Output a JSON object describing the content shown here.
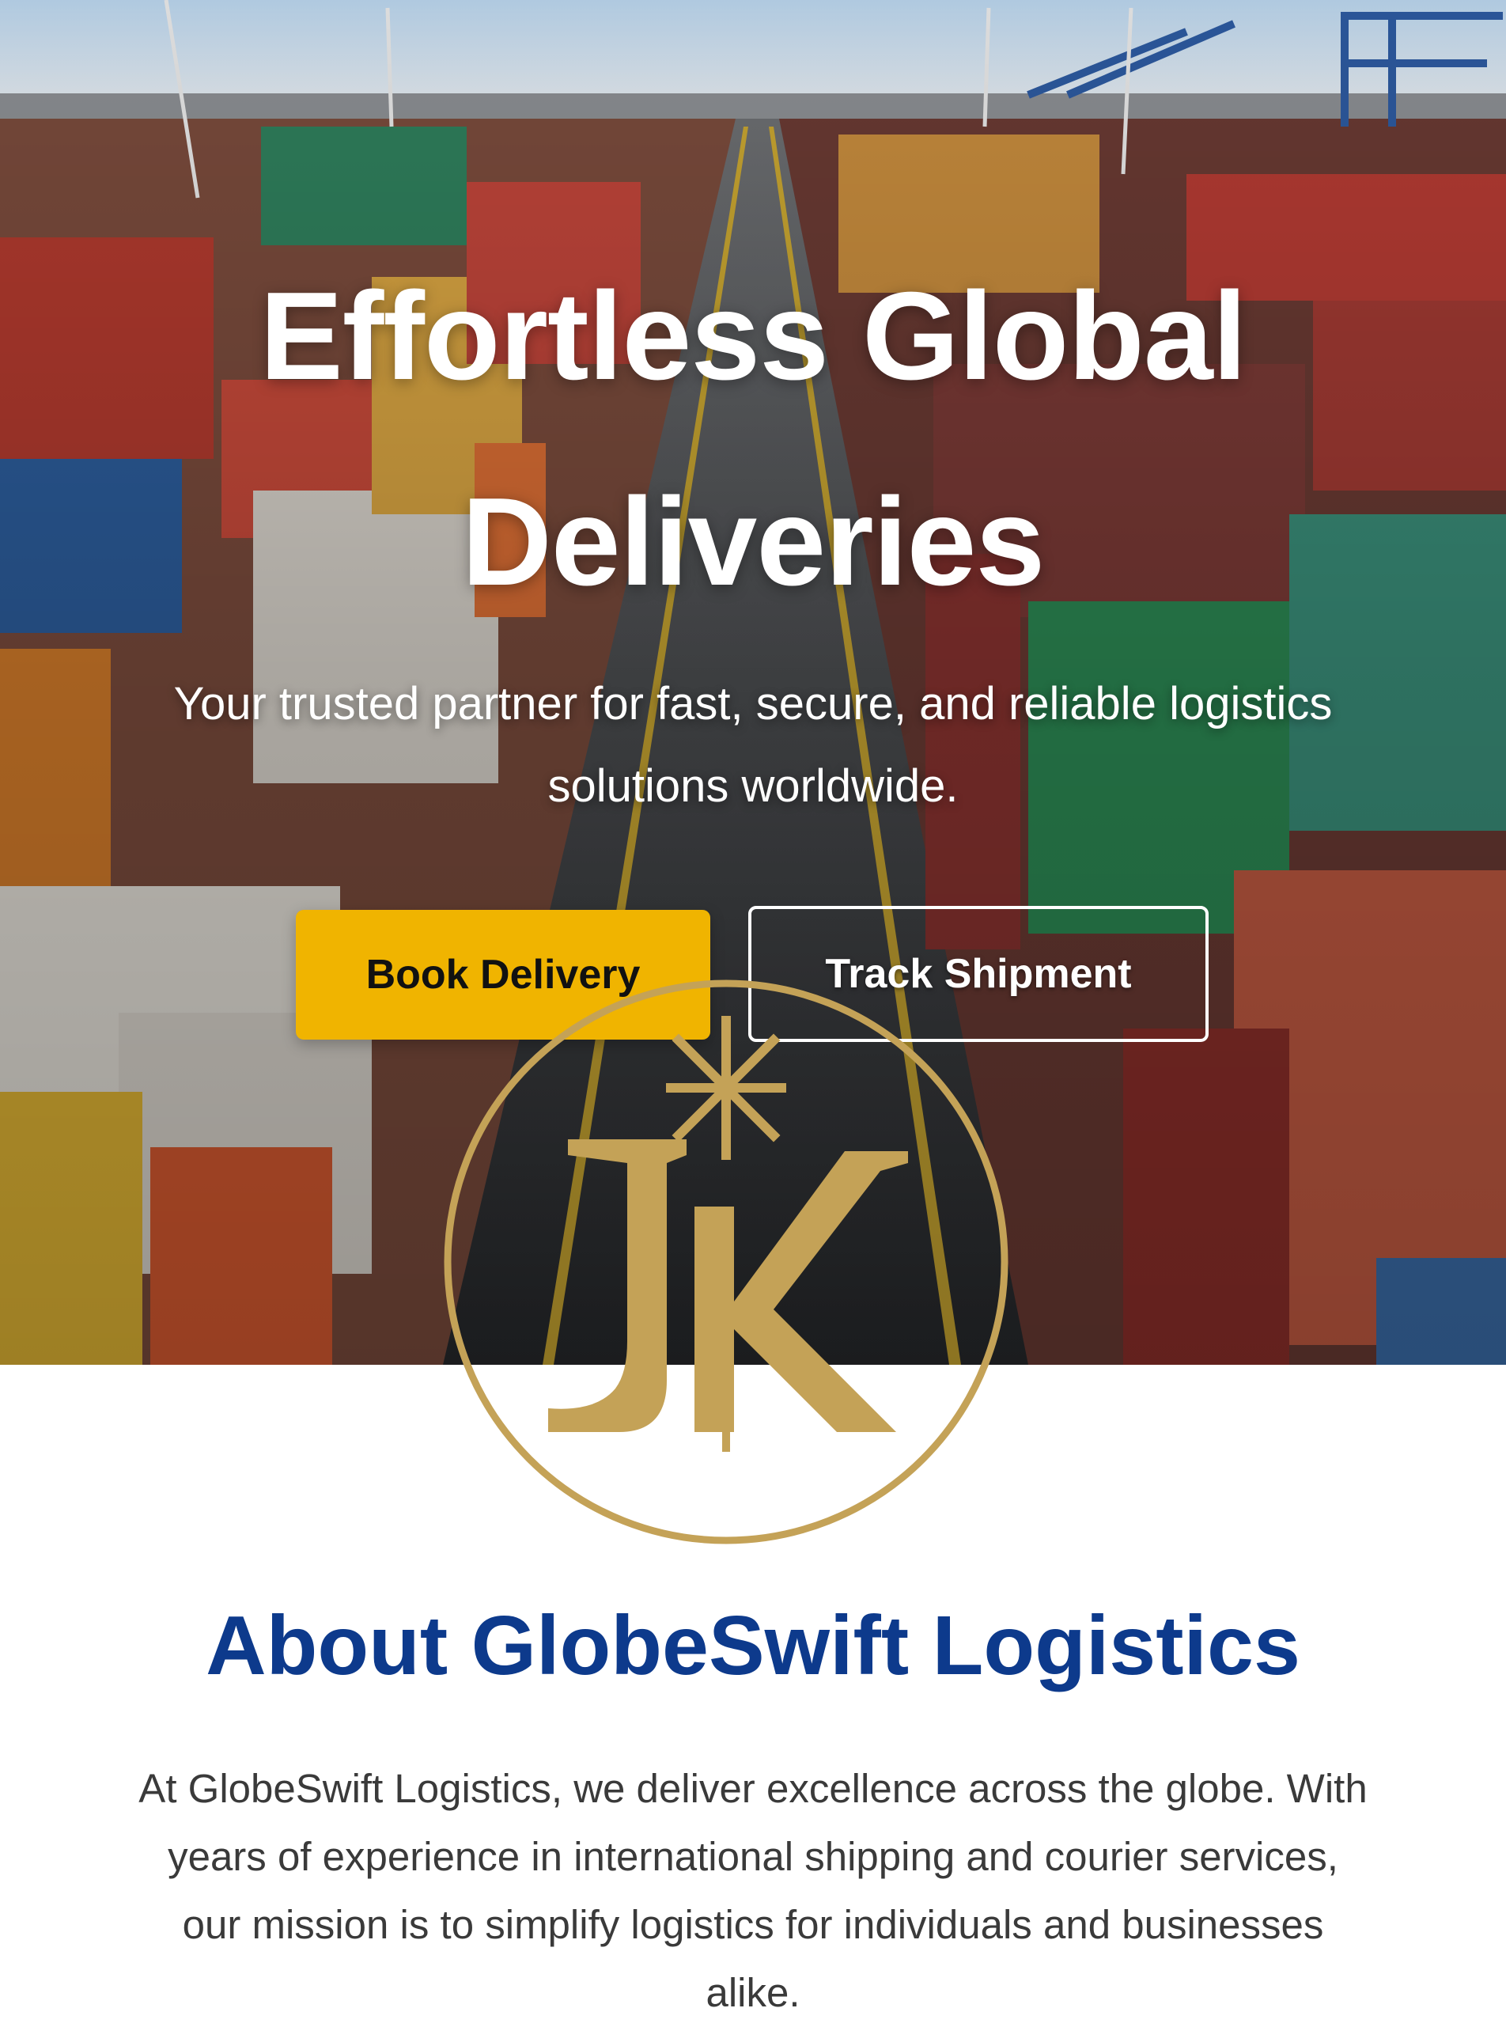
{
  "hero": {
    "title_line1": "Effortless Global",
    "title_line2": "Deliveries",
    "subtitle_line1": "Your trusted partner for fast, secure, and reliable logistics",
    "subtitle_line2": "solutions worldwide.",
    "book_button": "Book Delivery",
    "track_button": "Track Shipment",
    "background": "container-port-aerial-photo"
  },
  "watermark": {
    "monogram": "JK",
    "color": "#c4a257"
  },
  "about": {
    "title": "About GlobeSwift Logistics",
    "text_line1": "At GlobeSwift Logistics, we deliver excellence across the globe. With",
    "text_line2": "years of experience in international shipping and courier services,",
    "text_line3": "our mission is to simplify logistics for individuals and businesses",
    "text_line4": "alike."
  },
  "colors": {
    "primary_blue": "#0d3a8c",
    "accent_yellow": "#f0b400",
    "gold": "#c4a257"
  }
}
